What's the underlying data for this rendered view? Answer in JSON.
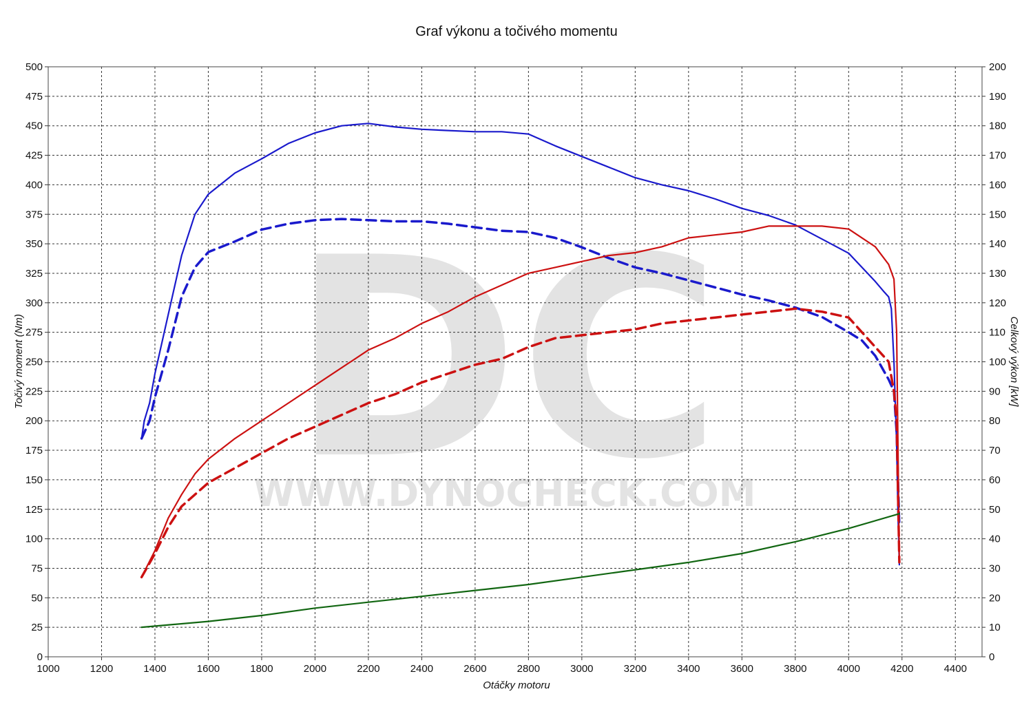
{
  "chart_data": {
    "type": "line",
    "title": "Graf výkonu a točivého momentu",
    "xlabel": "Otáčky motoru",
    "ylabel_left": "Točivý moment (Nm)",
    "ylabel_right": "Celkový výkon [kW]",
    "watermark": {
      "logo": "DC",
      "url": "WWW.DYNOCHECK.COM"
    },
    "xlim": [
      1000,
      4500
    ],
    "ylim_left": [
      0,
      500
    ],
    "ylim_right": [
      0,
      200
    ],
    "x_ticks": [
      1000,
      1200,
      1400,
      1600,
      1800,
      2000,
      2200,
      2400,
      2600,
      2800,
      3000,
      3200,
      3400,
      3600,
      3800,
      4000,
      4200,
      4400
    ],
    "y_ticks_left": [
      0,
      25,
      50,
      75,
      100,
      125,
      150,
      175,
      200,
      225,
      250,
      275,
      300,
      325,
      350,
      375,
      400,
      425,
      450,
      475,
      500
    ],
    "y_ticks_right": [
      0,
      10,
      20,
      30,
      40,
      50,
      60,
      70,
      80,
      90,
      100,
      110,
      120,
      130,
      140,
      150,
      160,
      170,
      180,
      190,
      200
    ],
    "grid": true,
    "series": [
      {
        "id": "torque-tuned",
        "axis": "left",
        "style": "solid",
        "color": "#1a1acc",
        "points": [
          [
            1350,
            185
          ],
          [
            1360,
            200
          ],
          [
            1380,
            215
          ],
          [
            1400,
            240
          ],
          [
            1450,
            290
          ],
          [
            1500,
            340
          ],
          [
            1550,
            375
          ],
          [
            1600,
            392
          ],
          [
            1700,
            410
          ],
          [
            1800,
            422
          ],
          [
            1900,
            435
          ],
          [
            2000,
            444
          ],
          [
            2100,
            450
          ],
          [
            2200,
            452
          ],
          [
            2300,
            449
          ],
          [
            2400,
            447
          ],
          [
            2500,
            446
          ],
          [
            2600,
            445
          ],
          [
            2700,
            445
          ],
          [
            2800,
            443
          ],
          [
            2900,
            433
          ],
          [
            3000,
            424
          ],
          [
            3100,
            415
          ],
          [
            3200,
            406
          ],
          [
            3300,
            400
          ],
          [
            3400,
            395
          ],
          [
            3500,
            388
          ],
          [
            3600,
            380
          ],
          [
            3700,
            374
          ],
          [
            3800,
            366
          ],
          [
            3900,
            354
          ],
          [
            4000,
            342
          ],
          [
            4050,
            330
          ],
          [
            4100,
            318
          ],
          [
            4130,
            310
          ],
          [
            4150,
            305
          ],
          [
            4160,
            295
          ],
          [
            4170,
            250
          ],
          [
            4180,
            180
          ],
          [
            4185,
            120
          ],
          [
            4190,
            78
          ]
        ]
      },
      {
        "id": "torque-stock",
        "axis": "left",
        "style": "dashed",
        "color": "#1a1acc",
        "points": [
          [
            1350,
            185
          ],
          [
            1380,
            200
          ],
          [
            1400,
            220
          ],
          [
            1450,
            260
          ],
          [
            1500,
            305
          ],
          [
            1550,
            330
          ],
          [
            1600,
            343
          ],
          [
            1700,
            352
          ],
          [
            1800,
            362
          ],
          [
            1900,
            367
          ],
          [
            2000,
            370
          ],
          [
            2100,
            371
          ],
          [
            2200,
            370
          ],
          [
            2300,
            369
          ],
          [
            2400,
            369
          ],
          [
            2500,
            367
          ],
          [
            2600,
            364
          ],
          [
            2700,
            361
          ],
          [
            2800,
            360
          ],
          [
            2900,
            355
          ],
          [
            3000,
            347
          ],
          [
            3100,
            338
          ],
          [
            3200,
            330
          ],
          [
            3300,
            325
          ],
          [
            3400,
            319
          ],
          [
            3500,
            313
          ],
          [
            3600,
            307
          ],
          [
            3700,
            302
          ],
          [
            3800,
            296
          ],
          [
            3900,
            288
          ],
          [
            4000,
            275
          ],
          [
            4050,
            268
          ],
          [
            4100,
            255
          ],
          [
            4150,
            235
          ],
          [
            4170,
            225
          ],
          [
            4180,
            190
          ],
          [
            4190,
            110
          ]
        ]
      },
      {
        "id": "power-tuned",
        "axis": "right",
        "style": "solid",
        "color": "#cc1111",
        "points": [
          [
            1350,
            27
          ],
          [
            1400,
            36
          ],
          [
            1450,
            47
          ],
          [
            1500,
            55
          ],
          [
            1550,
            62
          ],
          [
            1600,
            67
          ],
          [
            1700,
            74
          ],
          [
            1800,
            80
          ],
          [
            1900,
            86
          ],
          [
            2000,
            92
          ],
          [
            2100,
            98
          ],
          [
            2200,
            104
          ],
          [
            2300,
            108
          ],
          [
            2400,
            113
          ],
          [
            2500,
            117
          ],
          [
            2600,
            122
          ],
          [
            2700,
            126
          ],
          [
            2800,
            130
          ],
          [
            2900,
            132
          ],
          [
            3000,
            134
          ],
          [
            3100,
            136
          ],
          [
            3200,
            137
          ],
          [
            3300,
            139
          ],
          [
            3400,
            142
          ],
          [
            3500,
            143
          ],
          [
            3600,
            144
          ],
          [
            3700,
            146
          ],
          [
            3800,
            146
          ],
          [
            3900,
            146
          ],
          [
            4000,
            145
          ],
          [
            4100,
            139
          ],
          [
            4150,
            133
          ],
          [
            4170,
            128
          ],
          [
            4180,
            110
          ],
          [
            4190,
            32
          ]
        ]
      },
      {
        "id": "power-stock",
        "axis": "right",
        "style": "dashed",
        "color": "#cc1111",
        "points": [
          [
            1350,
            27
          ],
          [
            1400,
            35
          ],
          [
            1450,
            44
          ],
          [
            1500,
            51
          ],
          [
            1600,
            59
          ],
          [
            1700,
            64
          ],
          [
            1800,
            69
          ],
          [
            1900,
            74
          ],
          [
            2000,
            78
          ],
          [
            2100,
            82
          ],
          [
            2200,
            86
          ],
          [
            2300,
            89
          ],
          [
            2400,
            93
          ],
          [
            2500,
            96
          ],
          [
            2600,
            99
          ],
          [
            2700,
            101
          ],
          [
            2800,
            105
          ],
          [
            2900,
            108
          ],
          [
            3000,
            109
          ],
          [
            3100,
            110
          ],
          [
            3200,
            111
          ],
          [
            3300,
            113
          ],
          [
            3400,
            114
          ],
          [
            3500,
            115
          ],
          [
            3600,
            116
          ],
          [
            3700,
            117
          ],
          [
            3800,
            118
          ],
          [
            3900,
            117
          ],
          [
            4000,
            115
          ],
          [
            4100,
            105
          ],
          [
            4150,
            100
          ],
          [
            4170,
            90
          ],
          [
            4180,
            80
          ],
          [
            4190,
            32
          ]
        ]
      },
      {
        "id": "losses",
        "axis": "right",
        "style": "solid",
        "color": "#116611",
        "points": [
          [
            1350,
            10
          ],
          [
            1600,
            12
          ],
          [
            1800,
            14
          ],
          [
            2000,
            16.5
          ],
          [
            2200,
            18.5
          ],
          [
            2400,
            20.5
          ],
          [
            2600,
            22.5
          ],
          [
            2800,
            24.5
          ],
          [
            3000,
            27
          ],
          [
            3200,
            29.5
          ],
          [
            3400,
            32
          ],
          [
            3600,
            35
          ],
          [
            3800,
            39
          ],
          [
            4000,
            43.5
          ],
          [
            4190,
            48.5
          ]
        ]
      }
    ]
  }
}
